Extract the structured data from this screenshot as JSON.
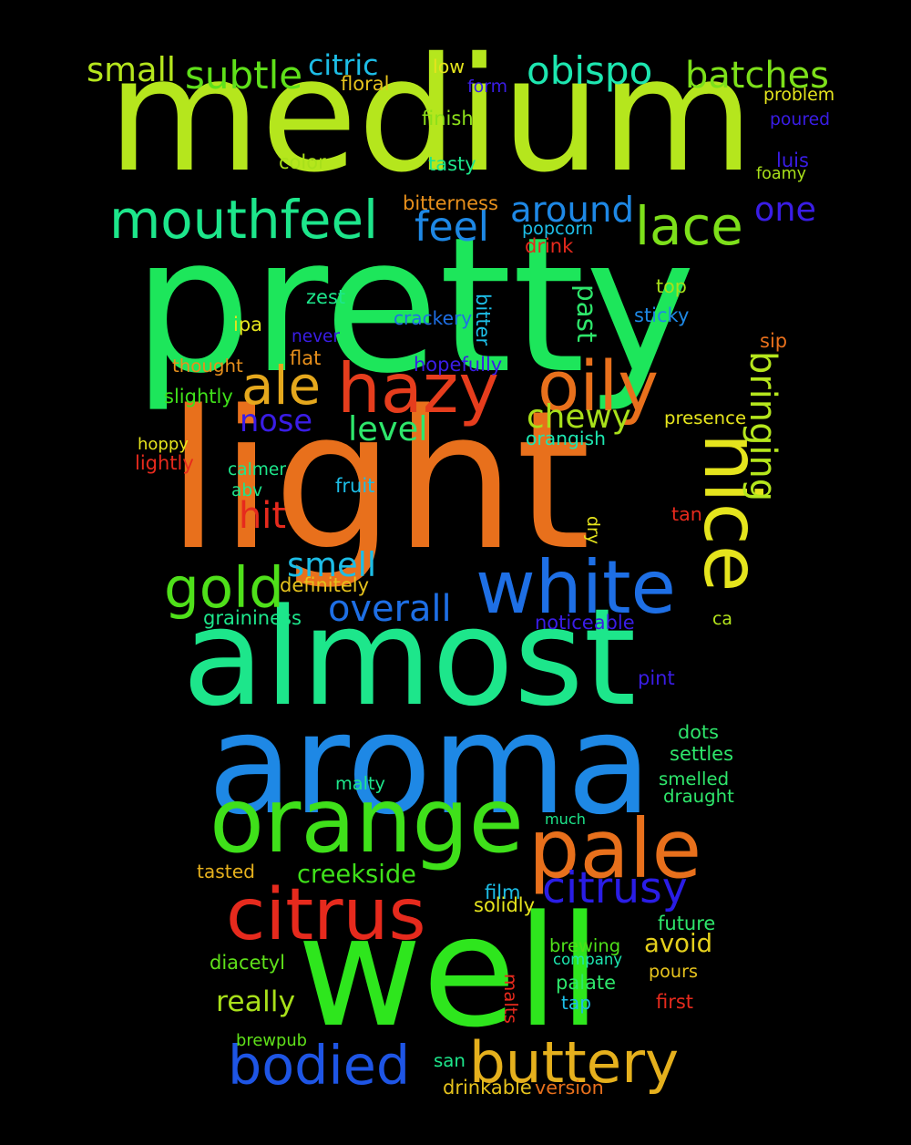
{
  "words": [
    {
      "text": "medium",
      "color": "#b5e61d"
    },
    {
      "text": "pretty",
      "color": "#1de65b"
    },
    {
      "text": "light",
      "color": "#e8701c"
    },
    {
      "text": "almost",
      "color": "#1de68b"
    },
    {
      "text": "aroma",
      "color": "#1e88e5"
    },
    {
      "text": "well",
      "color": "#2ee61d"
    },
    {
      "text": "orange",
      "color": "#3fe01a"
    },
    {
      "text": "citrus",
      "color": "#e62a1d"
    },
    {
      "text": "pale",
      "color": "#e8701c"
    },
    {
      "text": "white",
      "color": "#1e6fe5"
    },
    {
      "text": "hazy",
      "color": "#e63d1d"
    },
    {
      "text": "oily",
      "color": "#e8701c"
    },
    {
      "text": "nice",
      "color": "#e5e41d"
    },
    {
      "text": "bodied",
      "color": "#1e55e5"
    },
    {
      "text": "buttery",
      "color": "#e5b01d"
    },
    {
      "text": "mouthfeel",
      "color": "#1de68b"
    },
    {
      "text": "gold",
      "color": "#4fe01a"
    },
    {
      "text": "lace",
      "color": "#7de01a"
    },
    {
      "text": "citrusy",
      "color": "#2a1de6"
    },
    {
      "text": "ale",
      "color": "#e5a81d"
    },
    {
      "text": "batches",
      "color": "#7de01a"
    },
    {
      "text": "obispo",
      "color": "#1de6b0"
    },
    {
      "text": "subtle",
      "color": "#5fe01a"
    },
    {
      "text": "small",
      "color": "#b5e61d"
    },
    {
      "text": "around",
      "color": "#1e88e5"
    },
    {
      "text": "feel",
      "color": "#1e88e5"
    },
    {
      "text": "one",
      "color": "#3a1de6"
    },
    {
      "text": "overall",
      "color": "#1e6fe5"
    },
    {
      "text": "chewy",
      "color": "#a8e01a"
    },
    {
      "text": "hit",
      "color": "#e62a1d"
    },
    {
      "text": "smell",
      "color": "#1dbde6"
    },
    {
      "text": "level",
      "color": "#2ee66b"
    },
    {
      "text": "nose",
      "color": "#3a1de6"
    },
    {
      "text": "bringing",
      "color": "#b5e61d"
    },
    {
      "text": "citric",
      "color": "#1dbde6"
    },
    {
      "text": "really",
      "color": "#a8e01a"
    },
    {
      "text": "creekside",
      "color": "#3fe01a"
    },
    {
      "text": "past",
      "color": "#2ee66b"
    },
    {
      "text": "avoid",
      "color": "#e5d01d"
    },
    {
      "text": "floral",
      "color": "#e5c21d"
    },
    {
      "text": "low",
      "color": "#e5e41d"
    },
    {
      "text": "form",
      "color": "#3a1de6"
    },
    {
      "text": "problem",
      "color": "#e5e41d"
    },
    {
      "text": "poured",
      "color": "#3a1de6"
    },
    {
      "text": "finish",
      "color": "#8de01a"
    },
    {
      "text": "color",
      "color": "#a8e01a"
    },
    {
      "text": "tasty",
      "color": "#1de68b"
    },
    {
      "text": "luis",
      "color": "#3a1de6"
    },
    {
      "text": "foamy",
      "color": "#a8e01a"
    },
    {
      "text": "bitterness",
      "color": "#e8901c"
    },
    {
      "text": "popcorn",
      "color": "#1dbde6"
    },
    {
      "text": "drink",
      "color": "#e62a1d"
    },
    {
      "text": "zest",
      "color": "#1de68b"
    },
    {
      "text": "top",
      "color": "#a8e01a"
    },
    {
      "text": "crackery",
      "color": "#1e6fe5"
    },
    {
      "text": "bitter",
      "color": "#1dbde6"
    },
    {
      "text": "sticky",
      "color": "#1e88e5"
    },
    {
      "text": "ipa",
      "color": "#e5e41d"
    },
    {
      "text": "never",
      "color": "#3a1de6"
    },
    {
      "text": "sip",
      "color": "#e8701c"
    },
    {
      "text": "flat",
      "color": "#e8901c"
    },
    {
      "text": "thought",
      "color": "#e8901c"
    },
    {
      "text": "hopefully",
      "color": "#3a1de6"
    },
    {
      "text": "slightly",
      "color": "#3fe01a"
    },
    {
      "text": "presence",
      "color": "#e5e41d"
    },
    {
      "text": "hoppy",
      "color": "#e5e41d"
    },
    {
      "text": "orangish",
      "color": "#1de6b0"
    },
    {
      "text": "lightly",
      "color": "#e62a1d"
    },
    {
      "text": "calmer",
      "color": "#1de68b"
    },
    {
      "text": "fruit",
      "color": "#1dbde6"
    },
    {
      "text": "abv",
      "color": "#1de68b"
    },
    {
      "text": "dry",
      "color": "#e5e41d"
    },
    {
      "text": "tan",
      "color": "#e62a1d"
    },
    {
      "text": "definitely",
      "color": "#e5c21d"
    },
    {
      "text": "graininess",
      "color": "#1de68b"
    },
    {
      "text": "noticeable",
      "color": "#3a1de6"
    },
    {
      "text": "ca",
      "color": "#b5e61d"
    },
    {
      "text": "pint",
      "color": "#3a1de6"
    },
    {
      "text": "dots",
      "color": "#2ee66b"
    },
    {
      "text": "settles",
      "color": "#2ee66b"
    },
    {
      "text": "malty",
      "color": "#1de68b"
    },
    {
      "text": "smelled",
      "color": "#2ee66b"
    },
    {
      "text": "draught",
      "color": "#2ee66b"
    },
    {
      "text": "much",
      "color": "#1de68b"
    },
    {
      "text": "tasted",
      "color": "#e5b01d"
    },
    {
      "text": "film",
      "color": "#1dbde6"
    },
    {
      "text": "solidly",
      "color": "#e5e41d"
    },
    {
      "text": "future",
      "color": "#2ee66b"
    },
    {
      "text": "diacetyl",
      "color": "#5fe01a"
    },
    {
      "text": "brewing",
      "color": "#4fe01a"
    },
    {
      "text": "company",
      "color": "#1de6b0"
    },
    {
      "text": "pours",
      "color": "#e5c21d"
    },
    {
      "text": "palate",
      "color": "#2ee66b"
    },
    {
      "text": "malts",
      "color": "#e62a1d"
    },
    {
      "text": "tap",
      "color": "#1dbde6"
    },
    {
      "text": "first",
      "color": "#e62a1d"
    },
    {
      "text": "brewpub",
      "color": "#5fe01a"
    },
    {
      "text": "san",
      "color": "#1de68b"
    },
    {
      "text": "drinkable",
      "color": "#e5c21d"
    },
    {
      "text": "version",
      "color": "#e8701c"
    }
  ]
}
